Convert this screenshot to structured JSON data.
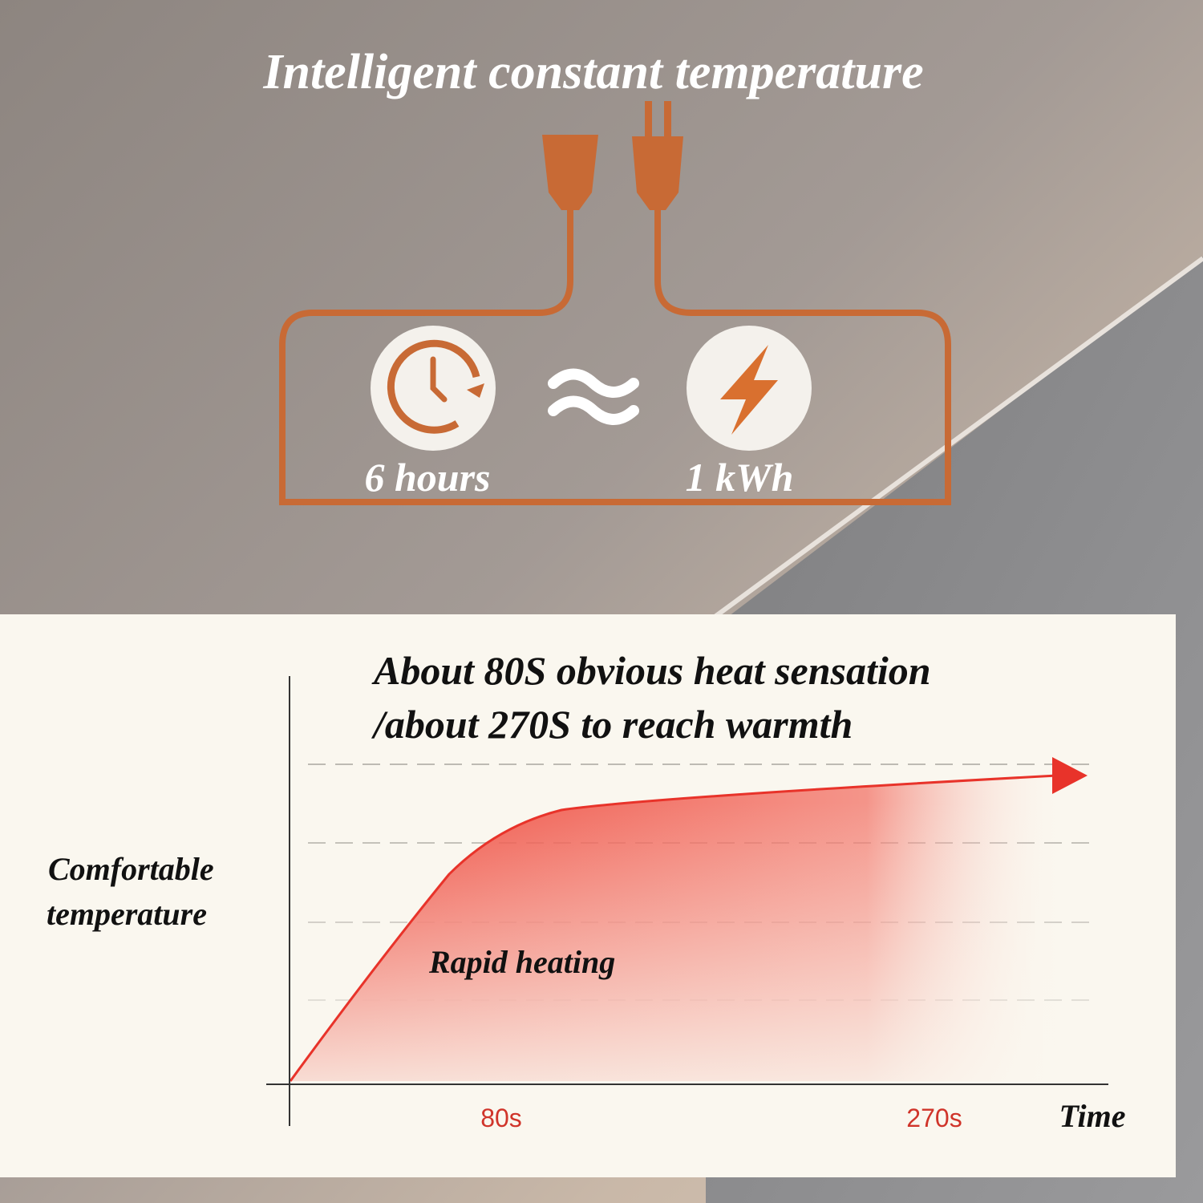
{
  "header": {
    "title": "Intelligent constant temperature"
  },
  "power": {
    "duration": "6 hours",
    "energy": "1 kWh"
  },
  "graph": {
    "title_lines": [
      "About 80S obvious heat sensation",
      "/about 270S to reach warmth"
    ],
    "y_label_lines": [
      "Comfortable",
      "temperature"
    ],
    "curve_label": "Rapid heating",
    "x_labels": [
      "80s",
      "270s"
    ],
    "x_axis_label": "Time"
  }
}
